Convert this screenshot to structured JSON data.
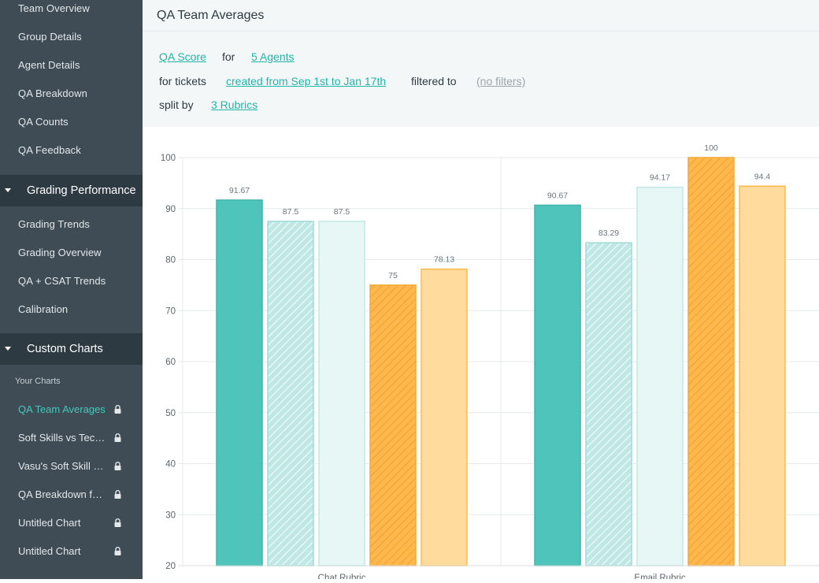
{
  "sidebar": {
    "reports_items": [
      {
        "label": "Team Overview"
      },
      {
        "label": "Group Details"
      },
      {
        "label": "Agent Details"
      },
      {
        "label": "QA Breakdown"
      },
      {
        "label": "QA Counts"
      },
      {
        "label": "QA Feedback"
      }
    ],
    "grading_section": {
      "label": "Grading Performance",
      "items": [
        {
          "label": "Grading Trends"
        },
        {
          "label": "Grading Overview"
        },
        {
          "label": "QA + CSAT Trends"
        },
        {
          "label": "Calibration"
        }
      ]
    },
    "custom_section": {
      "label": "Custom Charts",
      "subheading": "Your Charts",
      "items": [
        {
          "label": "QA Team Averages",
          "active": true
        },
        {
          "label": "Soft Skills vs Technical"
        },
        {
          "label": "Vasu's Soft Skill Chart"
        },
        {
          "label": "QA Breakdown for Team"
        },
        {
          "label": "Untitled Chart"
        },
        {
          "label": "Untitled Chart"
        }
      ]
    }
  },
  "header": {
    "title": "QA Team Averages"
  },
  "query": {
    "metric": "QA Score",
    "for_word": "for",
    "agents": "5 Agents",
    "for_tickets": "for tickets",
    "date_range": "created from Sep 1st to Jan 17th",
    "filtered_to": "filtered to",
    "filters": "(no filters)",
    "split_by": "split by",
    "rubrics": "3 Rubrics"
  },
  "colors": {
    "teal": "#4fc4ba",
    "teal_edge": "#3fb5ab",
    "teal_light": "#bfe8e4",
    "teal_pale": "#e7f7f5",
    "orange": "#ffb84d",
    "orange_edge": "#f2a93a",
    "orange_light": "#ffdc9e"
  },
  "chart_data": {
    "type": "bar",
    "categories": [
      "Chat Rubric",
      "Email Rubric"
    ],
    "series": [
      {
        "values": [
          91.67,
          90.67
        ],
        "style": "solid-teal"
      },
      {
        "values": [
          87.5,
          83.29
        ],
        "style": "hatched-teal"
      },
      {
        "values": [
          87.5,
          94.17
        ],
        "style": "pale-teal"
      },
      {
        "values": [
          75,
          100
        ],
        "style": "hatched-orange"
      },
      {
        "values": [
          78.13,
          94.4
        ],
        "style": "light-orange"
      }
    ],
    "yticks": [
      20,
      30,
      40,
      50,
      60,
      70,
      80,
      90,
      100
    ],
    "ylim": [
      20,
      100
    ],
    "grid": true
  }
}
